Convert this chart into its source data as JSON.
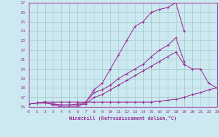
{
  "xlabel": "Windchill (Refroidissement éolien,°C)",
  "background_color": "#cce8f0",
  "grid_color": "#aacccc",
  "line_color": "#993399",
  "xlim": [
    0,
    23
  ],
  "ylim": [
    16,
    27
  ],
  "xticks": [
    0,
    1,
    2,
    3,
    4,
    5,
    6,
    7,
    8,
    9,
    10,
    11,
    12,
    13,
    14,
    15,
    16,
    17,
    18,
    19,
    20,
    21,
    22,
    23
  ],
  "yticks": [
    16,
    17,
    18,
    19,
    20,
    21,
    22,
    23,
    24,
    25,
    26,
    27
  ],
  "series": [
    {
      "x": [
        0,
        1,
        2,
        3,
        4,
        5,
        6,
        7,
        8,
        9,
        10,
        11,
        12,
        13,
        14,
        15,
        16,
        17,
        18,
        19,
        20,
        21,
        22,
        23
      ],
      "y": [
        16.3,
        16.4,
        16.5,
        16.5,
        16.5,
        16.5,
        16.5,
        16.5,
        16.5,
        16.5,
        16.5,
        16.5,
        16.5,
        16.5,
        16.5,
        16.5,
        16.6,
        16.7,
        16.8,
        17.0,
        17.3,
        17.5,
        17.8,
        18.0
      ]
    },
    {
      "x": [
        0,
        1,
        2,
        3,
        4,
        5,
        6,
        7,
        8,
        9,
        10,
        11,
        12,
        13,
        14,
        15,
        16,
        17,
        18,
        19,
        20,
        21,
        22,
        23
      ],
      "y": [
        16.3,
        16.4,
        16.4,
        16.3,
        16.2,
        16.2,
        16.2,
        16.3,
        17.0,
        17.3,
        17.8,
        18.3,
        18.8,
        19.3,
        19.8,
        20.3,
        20.8,
        21.3,
        21.8,
        20.5,
        20.0,
        20.0,
        18.5,
        18.0
      ]
    },
    {
      "x": [
        0,
        1,
        2,
        3,
        4,
        5,
        6,
        7,
        8,
        9,
        10,
        11,
        12,
        13,
        14,
        15,
        16,
        17,
        18,
        19,
        20,
        21,
        22,
        23
      ],
      "y": [
        16.3,
        16.4,
        16.5,
        16.3,
        16.2,
        16.2,
        16.3,
        16.5,
        17.5,
        17.8,
        18.3,
        19.0,
        19.5,
        20.0,
        20.5,
        21.3,
        22.0,
        22.5,
        23.3,
        20.8,
        null,
        null,
        null,
        null
      ]
    },
    {
      "x": [
        0,
        1,
        2,
        3,
        4,
        5,
        6,
        7,
        8,
        9,
        10,
        11,
        12,
        13,
        14,
        15,
        16,
        17,
        18,
        19,
        20,
        21,
        22,
        23
      ],
      "y": [
        16.3,
        16.4,
        16.5,
        16.2,
        16.0,
        16.0,
        16.0,
        16.5,
        17.8,
        18.5,
        20.0,
        21.5,
        23.0,
        24.5,
        25.0,
        26.0,
        26.3,
        26.5,
        27.0,
        24.0,
        null,
        null,
        null,
        null
      ]
    }
  ]
}
